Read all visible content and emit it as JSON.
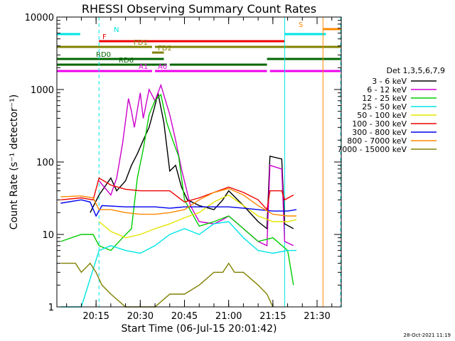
{
  "chart_data": {
    "type": "line",
    "title": "RHESSI Observing Summary Count Rates",
    "xlabel": "Start Time (06-Jul-15 20:01:42)",
    "ylabel": "Count Rate (s⁻¹ detector⁻¹)",
    "y_scale": "log",
    "ylim": [
      1,
      10000
    ],
    "xlim_minutes": [
      20.03,
      21.63
    ],
    "x_ticks": [
      {
        "label": "20:15",
        "value": "20:15"
      },
      {
        "label": "20:30",
        "value": "20:30"
      },
      {
        "label": "20:45",
        "value": "20:45"
      },
      {
        "label": "21:00",
        "value": "21:00"
      },
      {
        "label": "21:15",
        "value": "21:15"
      },
      {
        "label": "21:30",
        "value": "21:30"
      }
    ],
    "y_ticks": [
      {
        "label": "1",
        "value": 1
      },
      {
        "label": "10",
        "value": 10
      },
      {
        "label": "100",
        "value": 100
      },
      {
        "label": "1000",
        "value": 1000
      },
      {
        "label": "10000",
        "value": 10000
      }
    ],
    "legend_header": "Det 1,3,5,6,7,9",
    "legend_position": "right",
    "series": [
      {
        "name": "3 - 6 keV",
        "color": "#000000",
        "points": [
          [
            "20:13",
            20
          ],
          [
            "20:16",
            35
          ],
          [
            "20:20",
            60
          ],
          [
            "20:22",
            40
          ],
          [
            "20:25",
            55
          ],
          [
            "20:27",
            90
          ],
          [
            "20:29",
            130
          ],
          [
            "20:31",
            200
          ],
          [
            "20:33",
            300
          ],
          [
            "20:35",
            600
          ],
          [
            "20:36",
            900
          ],
          [
            "20:38",
            350
          ],
          [
            "20:40",
            75
          ],
          [
            "20:42",
            90
          ],
          [
            "20:44",
            45
          ],
          [
            "20:46",
            30
          ],
          [
            "20:50",
            25
          ],
          [
            "20:55",
            22
          ],
          [
            "20:58",
            30
          ],
          [
            "21:00",
            40
          ],
          [
            "21:05",
            25
          ],
          [
            "21:10",
            15
          ],
          [
            "21:13",
            12
          ],
          [
            "21:14",
            120
          ],
          [
            "21:18",
            110
          ],
          [
            "21:19",
            14
          ],
          [
            "21:22",
            12
          ]
        ]
      },
      {
        "name": "6 - 12 keV",
        "color": "#cc00cc",
        "points": [
          [
            "20:16",
            55
          ],
          [
            "20:20",
            35
          ],
          [
            "20:22",
            60
          ],
          [
            "20:24",
            180
          ],
          [
            "20:26",
            750
          ],
          [
            "20:27",
            500
          ],
          [
            "20:28",
            300
          ],
          [
            "20:30",
            900
          ],
          [
            "20:31",
            400
          ],
          [
            "20:33",
            1000
          ],
          [
            "20:35",
            700
          ],
          [
            "20:37",
            1150
          ],
          [
            "20:40",
            450
          ],
          [
            "20:42",
            200
          ],
          [
            "20:44",
            80
          ],
          [
            "20:47",
            25
          ],
          [
            "20:50",
            15
          ],
          [
            "20:55",
            14
          ],
          [
            "20:58",
            16
          ],
          [
            "21:00",
            18
          ],
          [
            "21:05",
            12
          ],
          [
            "21:10",
            8
          ],
          [
            "21:13",
            7
          ],
          [
            "21:14",
            90
          ],
          [
            "21:18",
            80
          ],
          [
            "21:19",
            8
          ],
          [
            "21:22",
            7
          ]
        ]
      },
      {
        "name": "12 - 25 keV",
        "color": "#00cc00",
        "points": [
          [
            "20:03",
            8
          ],
          [
            "20:10",
            10
          ],
          [
            "20:14",
            10
          ],
          [
            "20:16",
            7
          ],
          [
            "20:20",
            6
          ],
          [
            "20:24",
            9
          ],
          [
            "20:27",
            12
          ],
          [
            "20:29",
            60
          ],
          [
            "20:31",
            150
          ],
          [
            "20:33",
            450
          ],
          [
            "20:35",
            700
          ],
          [
            "20:37",
            850
          ],
          [
            "20:39",
            350
          ],
          [
            "20:41",
            200
          ],
          [
            "20:43",
            120
          ],
          [
            "20:45",
            30
          ],
          [
            "20:50",
            13
          ],
          [
            "20:55",
            15
          ],
          [
            "21:00",
            18
          ],
          [
            "21:05",
            12
          ],
          [
            "21:10",
            8
          ],
          [
            "21:15",
            9
          ],
          [
            "21:20",
            6
          ],
          [
            "21:22",
            2
          ]
        ]
      },
      {
        "name": "25 - 50 keV",
        "color": "#00e5e5",
        "points": [
          [
            "20:03",
            1
          ],
          [
            "20:10",
            1
          ],
          [
            "20:16",
            6
          ],
          [
            "20:20",
            7
          ],
          [
            "20:25",
            6
          ],
          [
            "20:30",
            5.5
          ],
          [
            "20:35",
            7
          ],
          [
            "20:40",
            10
          ],
          [
            "20:45",
            12
          ],
          [
            "20:50",
            10
          ],
          [
            "20:55",
            14
          ],
          [
            "21:00",
            15
          ],
          [
            "21:05",
            9
          ],
          [
            "21:10",
            6
          ],
          [
            "21:15",
            5.5
          ],
          [
            "21:20",
            6
          ],
          [
            "21:23",
            6
          ]
        ]
      },
      {
        "name": "50 - 100 keV",
        "color": "#e5e500",
        "points": [
          [
            "20:16",
            15
          ],
          [
            "20:20",
            11
          ],
          [
            "20:25",
            9
          ],
          [
            "20:30",
            10
          ],
          [
            "20:35",
            12
          ],
          [
            "20:40",
            14
          ],
          [
            "20:45",
            17
          ],
          [
            "20:50",
            20
          ],
          [
            "20:55",
            28
          ],
          [
            "21:00",
            35
          ],
          [
            "21:05",
            25
          ],
          [
            "21:10",
            18
          ],
          [
            "21:15",
            15
          ],
          [
            "21:20",
            15
          ],
          [
            "21:23",
            16
          ]
        ]
      },
      {
        "name": "100 - 300 keV",
        "color": "#ee0000",
        "points": [
          [
            "20:03",
            30
          ],
          [
            "20:10",
            32
          ],
          [
            "20:14",
            30
          ],
          [
            "20:16",
            60
          ],
          [
            "20:20",
            48
          ],
          [
            "20:25",
            42
          ],
          [
            "20:30",
            40
          ],
          [
            "20:35",
            40
          ],
          [
            "20:40",
            40
          ],
          [
            "20:45",
            28
          ],
          [
            "20:50",
            32
          ],
          [
            "20:55",
            38
          ],
          [
            "21:00",
            45
          ],
          [
            "21:05",
            38
          ],
          [
            "21:10",
            30
          ],
          [
            "21:13",
            22
          ],
          [
            "21:14",
            40
          ],
          [
            "21:18",
            40
          ],
          [
            "21:19",
            30
          ],
          [
            "21:22",
            35
          ]
        ]
      },
      {
        "name": "300 - 800 keV",
        "color": "#0000ee",
        "points": [
          [
            "20:03",
            27
          ],
          [
            "20:10",
            30
          ],
          [
            "20:13",
            28
          ],
          [
            "20:15",
            18
          ],
          [
            "20:17",
            25
          ],
          [
            "20:25",
            24
          ],
          [
            "20:30",
            24
          ],
          [
            "20:35",
            24
          ],
          [
            "20:40",
            23
          ],
          [
            "20:45",
            24
          ],
          [
            "20:50",
            24
          ],
          [
            "20:55",
            24
          ],
          [
            "21:00",
            24
          ],
          [
            "21:05",
            23
          ],
          [
            "21:10",
            22
          ],
          [
            "21:15",
            21
          ],
          [
            "21:20",
            21
          ],
          [
            "21:23",
            22
          ]
        ]
      },
      {
        "name": "800 - 7000 keV",
        "color": "#ff8800",
        "points": [
          [
            "20:03",
            33
          ],
          [
            "20:10",
            34
          ],
          [
            "20:14",
            32
          ],
          [
            "20:16",
            22
          ],
          [
            "20:20",
            22
          ],
          [
            "20:25",
            20
          ],
          [
            "20:30",
            19
          ],
          [
            "20:35",
            19
          ],
          [
            "20:40",
            20
          ],
          [
            "20:45",
            22
          ],
          [
            "20:50",
            30
          ],
          [
            "20:55",
            38
          ],
          [
            "21:00",
            43
          ],
          [
            "21:05",
            35
          ],
          [
            "21:10",
            25
          ],
          [
            "21:15",
            19
          ],
          [
            "21:20",
            18
          ],
          [
            "21:23",
            18
          ]
        ]
      },
      {
        "name": "7000 - 15000 keV",
        "color": "#808000",
        "points": [
          [
            "20:03",
            4
          ],
          [
            "20:08",
            4
          ],
          [
            "20:10",
            3
          ],
          [
            "20:13",
            4
          ],
          [
            "20:15",
            3
          ],
          [
            "20:17",
            2
          ],
          [
            "20:20",
            1.5
          ],
          [
            "20:25",
            1
          ],
          [
            "20:35",
            1
          ],
          [
            "20:40",
            1.5
          ],
          [
            "20:45",
            1.5
          ],
          [
            "20:50",
            2
          ],
          [
            "20:55",
            3
          ],
          [
            "20:58",
            3
          ],
          [
            "21:00",
            4
          ],
          [
            "21:02",
            3
          ],
          [
            "21:05",
            3
          ],
          [
            "21:10",
            2
          ],
          [
            "21:13",
            1.5
          ],
          [
            "21:15",
            1
          ]
        ]
      }
    ],
    "flags": [
      {
        "label": "N",
        "color": "#00e5e5",
        "spans": [
          [
            "20:01",
            20.16
          ],
          [
            "21:19",
            "21:33"
          ]
        ]
      },
      {
        "label": "F",
        "color": "#ee0000",
        "spans": [
          [
            "20:16",
            "21:19"
          ]
        ]
      },
      {
        "label": "S",
        "color": "#ff8800",
        "spans": [
          [
            "21:32",
            "21:38"
          ]
        ]
      },
      {
        "label": "FD1",
        "color": "#808000",
        "spans": [
          [
            "20:01",
            "20:34"
          ],
          [
            "20:35",
            "21:38"
          ]
        ]
      },
      {
        "label": "FD2",
        "color": "#808000",
        "spans": [
          [
            "20:34",
            "20:38"
          ]
        ]
      },
      {
        "label": "RD0",
        "color": "#006600",
        "spans": [
          [
            "20:01",
            "20:38"
          ],
          [
            "21:13",
            "21:38"
          ]
        ]
      },
      {
        "label": "RD6",
        "color": "#006600",
        "spans": [
          [
            "20:01",
            "20:39"
          ],
          [
            "20:40",
            "21:13"
          ]
        ]
      },
      {
        "label": "A1",
        "color": "#ee00ee",
        "spans": [
          [
            "20:01",
            "20:34"
          ]
        ]
      },
      {
        "label": "A0",
        "color": "#ee00ee",
        "spans": [
          [
            "20:35",
            "21:13"
          ],
          [
            "21:14",
            "21:38"
          ]
        ]
      }
    ],
    "event_lines": [
      {
        "time": "20:16",
        "color": "#00e5e5",
        "style": "dashed"
      },
      {
        "time": "21:19",
        "color": "#00e5e5",
        "style": "solid"
      },
      {
        "time": "21:32",
        "color": "#ff8800",
        "style": "solid"
      },
      {
        "time": "21:38",
        "color": "#00e5e5",
        "style": "dashed"
      }
    ]
  },
  "stamp": "28-Oct-2021 11:19"
}
